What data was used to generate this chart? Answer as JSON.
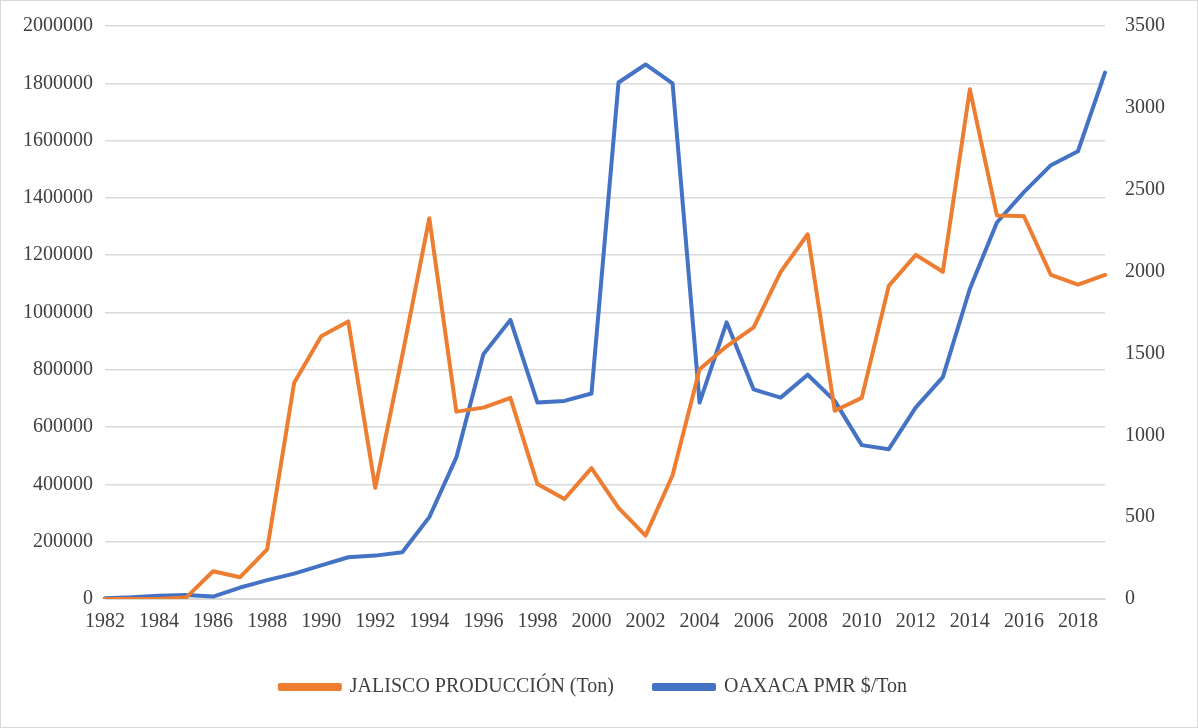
{
  "chart_data": {
    "type": "line",
    "categories": [
      "1982",
      null,
      "1984",
      null,
      "1986",
      null,
      "1988",
      null,
      "1990",
      null,
      "1992",
      null,
      "1994",
      null,
      "1996",
      null,
      "1998",
      null,
      "2000",
      null,
      "2002",
      null,
      "2004",
      null,
      "2006",
      null,
      "2008",
      null,
      "2010",
      null,
      "2012",
      null,
      "2014",
      null,
      "2016",
      null,
      "2018",
      null
    ],
    "series": [
      {
        "name": "JALISCO PRODUCCIÓN (Ton)",
        "color": "#ed7d31",
        "values": [
          0,
          0,
          0,
          5000,
          97000,
          76000,
          173000,
          755000,
          917000,
          969000,
          388000,
          850000,
          1329000,
          654000,
          668000,
          702000,
          401000,
          349000,
          457000,
          318000,
          221000,
          432000,
          802000,
          882000,
          948000,
          1142000,
          1273000,
          657000,
          702000,
          1093000,
          1201000,
          1142000,
          1779000,
          1339000,
          1336000,
          1131000,
          1097000,
          1131000
        ]
      },
      {
        "name": "OAXACA PMR $/Ton",
        "color": "#4472c4",
        "axis": "y2",
        "values": [
          5,
          10,
          20,
          25,
          15,
          70,
          115,
          155,
          205,
          255,
          265,
          285,
          500,
          865,
          1495,
          1705,
          1200,
          1210,
          1255,
          3155,
          3265,
          3150,
          1200,
          1690,
          1280,
          1230,
          1370,
          1210,
          940,
          915,
          1170,
          1355,
          1895,
          2300,
          2485,
          2650,
          2735,
          3215
        ]
      }
    ],
    "ylim": [
      0,
      2000000
    ],
    "yticks": [
      0,
      200000,
      400000,
      600000,
      800000,
      1000000,
      1200000,
      1400000,
      1600000,
      1800000,
      2000000
    ],
    "y2lim": [
      0,
      3500
    ],
    "y2ticks": [
      0,
      500,
      1000,
      1500,
      2000,
      2500,
      3000,
      3500
    ],
    "grid": "y",
    "legend": "bottom",
    "marker": "none",
    "line_style": "solid"
  }
}
